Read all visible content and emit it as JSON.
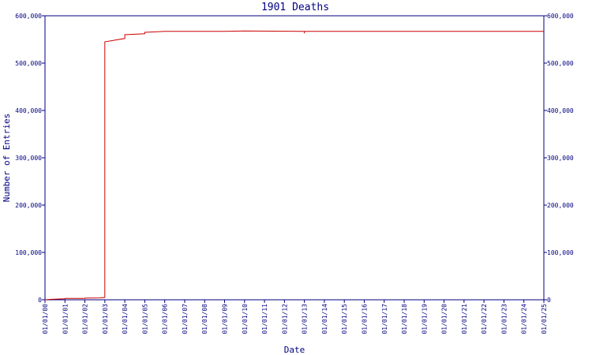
{
  "chart_data": {
    "type": "line",
    "title": "1901 Deaths",
    "xlabel": "Date",
    "ylabel": "Number of Entries",
    "x_tick_labels": [
      "01/01/00",
      "01/01/01",
      "01/01/02",
      "01/01/03",
      "01/01/04",
      "01/01/05",
      "01/01/06",
      "01/01/07",
      "01/01/08",
      "01/01/09",
      "01/01/10",
      "01/01/11",
      "01/01/12",
      "01/01/13",
      "01/01/14",
      "01/01/15",
      "01/01/16",
      "01/01/17",
      "01/01/18",
      "01/01/19",
      "01/01/20",
      "01/01/21",
      "01/01/22",
      "01/01/23",
      "01/01/24",
      "01/01/25"
    ],
    "y_tick_labels": [
      "0",
      "100,000",
      "200,000",
      "300,000",
      "400,000",
      "500,000",
      "600,000"
    ],
    "ylim": [
      0,
      600000
    ],
    "y_ticks": [
      0,
      100000,
      200000,
      300000,
      400000,
      500000,
      600000
    ],
    "right_axis": true,
    "grid": false,
    "series": [
      {
        "color": "#cc0000",
        "x": [
          "01/01/00",
          "01/01/00",
          "01/01/01",
          "01/01/01",
          "01/01/02",
          "01/01/02",
          "01/01/02",
          "01/01/03",
          "01/01/03",
          "01/01/03",
          "01/01/03",
          "01/01/03",
          "01/01/03",
          "01/01/03",
          "01/01/03",
          "01/01/03",
          "01/01/04",
          "01/01/04",
          "01/01/04",
          "01/01/05",
          "01/01/05",
          "01/01/06",
          "01/01/09",
          "01/01/10",
          "01/01/13",
          "01/01/13",
          "01/01/13",
          "01/01/14",
          "01/01/24",
          "01/01/25"
        ],
        "y": [
          0,
          1000,
          2000,
          3000,
          3000,
          3500,
          4000,
          5000,
          100000,
          280000,
          450000,
          470000,
          490000,
          520000,
          535000,
          545000,
          552000,
          557000,
          560000,
          562000,
          565000,
          567000,
          567000,
          568000,
          567000,
          563000,
          567000,
          567000,
          567000,
          567000
        ]
      }
    ]
  }
}
